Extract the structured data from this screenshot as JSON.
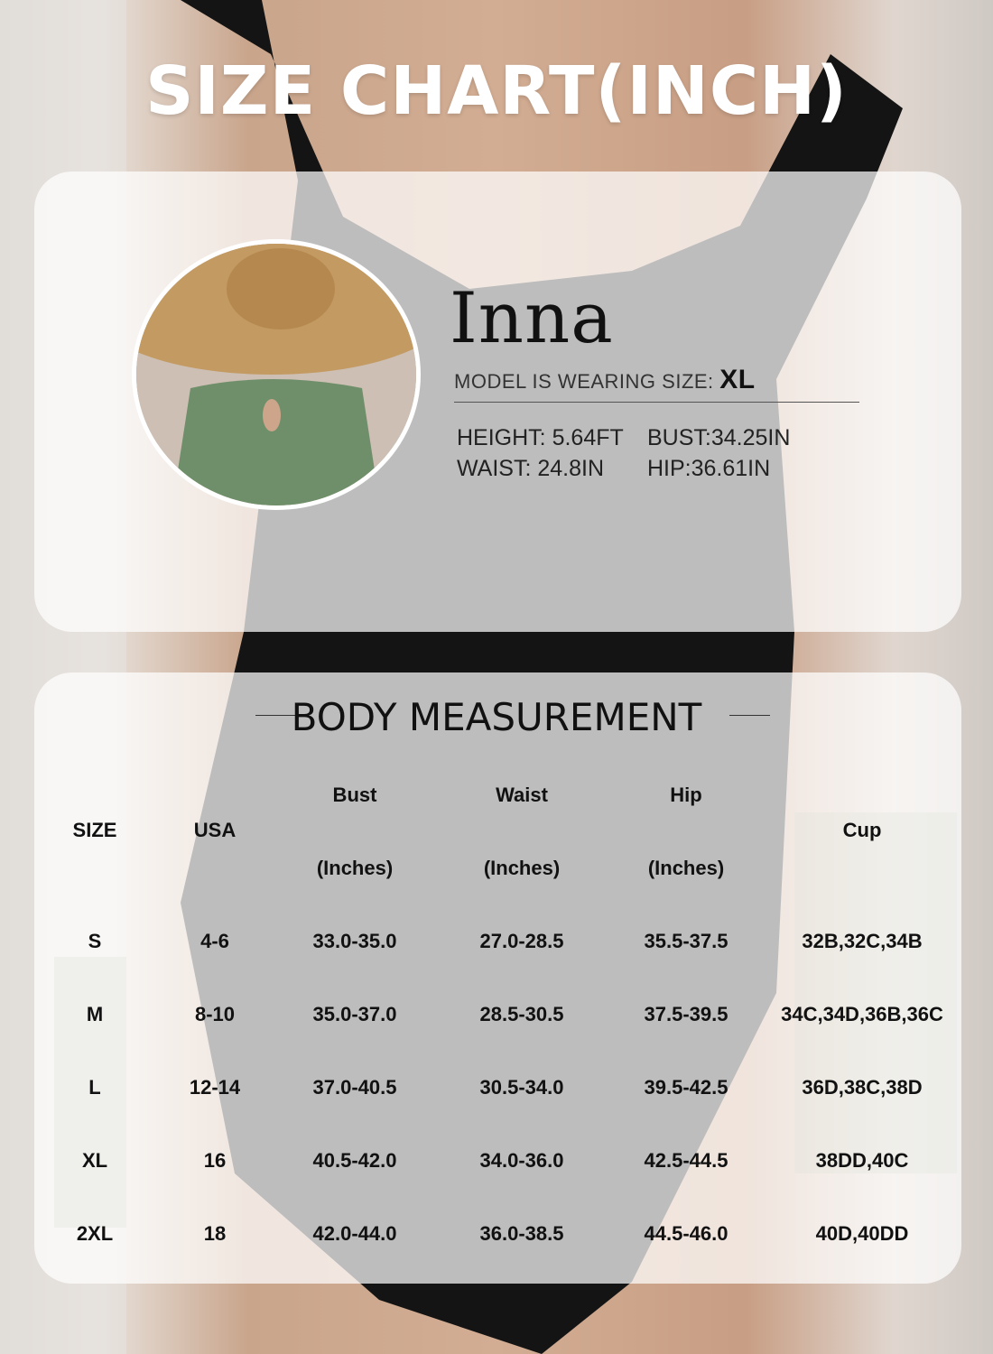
{
  "title": "SIZE CHART(INCH)",
  "model": {
    "name": "Inna",
    "wearing_label": "MODEL IS WEARING SIZE:",
    "wearing_size": "XL",
    "height": "HEIGHT: 5.64FT",
    "bust": "BUST:34.25IN",
    "waist": "WAIST: 24.8IN",
    "hip": "HIP:36.61IN"
  },
  "body_measurement": {
    "title": "BODY MEASUREMENT",
    "headers": {
      "size": "SIZE",
      "usa": "USA",
      "bust": "Bust",
      "waist": "Waist",
      "hip": "Hip",
      "unit": "(Inches)",
      "cup": "Cup"
    },
    "rows": [
      [
        "S",
        "4-6",
        "33.0-35.0",
        "27.0-28.5",
        "35.5-37.5",
        "32B,32C,34B"
      ],
      [
        "M",
        "8-10",
        "35.0-37.0",
        "28.5-30.5",
        "37.5-39.5",
        "34C,34D,36B,36C"
      ],
      [
        "L",
        "12-14",
        "37.0-40.5",
        "30.5-34.0",
        "39.5-42.5",
        "36D,38C,38D"
      ],
      [
        "XL",
        "16",
        "40.5-42.0",
        "34.0-36.0",
        "42.5-44.5",
        "38DD,40C"
      ],
      [
        "2XL",
        "18",
        "42.0-44.0",
        "36.0-38.5",
        "44.5-46.0",
        "40D,40DD"
      ]
    ]
  },
  "colors": {
    "swimsuit": "#111111",
    "model_swimsuit": "#6f8f6a",
    "hat": "#c39a62"
  }
}
